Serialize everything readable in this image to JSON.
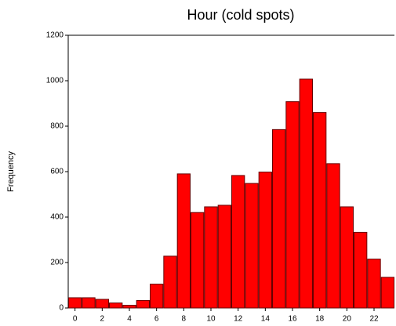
{
  "chart_data": {
    "type": "bar",
    "title": "Hour  (cold spots)",
    "y_label": "Frequency",
    "categories": [
      "0",
      null,
      "2",
      null,
      "4",
      null,
      "6",
      null,
      "8",
      null,
      "10",
      null,
      "12",
      null,
      "14",
      null,
      "16",
      null,
      "18",
      null,
      "20",
      null,
      "22",
      null
    ],
    "values": [
      45,
      45,
      38,
      22,
      12,
      33,
      105,
      228,
      590,
      420,
      445,
      452,
      583,
      548,
      598,
      785,
      908,
      1007,
      860,
      635,
      445,
      333,
      215,
      135
    ],
    "color": "#ff0000",
    "ylim": [
      0,
      1200
    ],
    "yticks": [
      0,
      200,
      400,
      600,
      800,
      1000,
      1200
    ],
    "grid": false
  }
}
